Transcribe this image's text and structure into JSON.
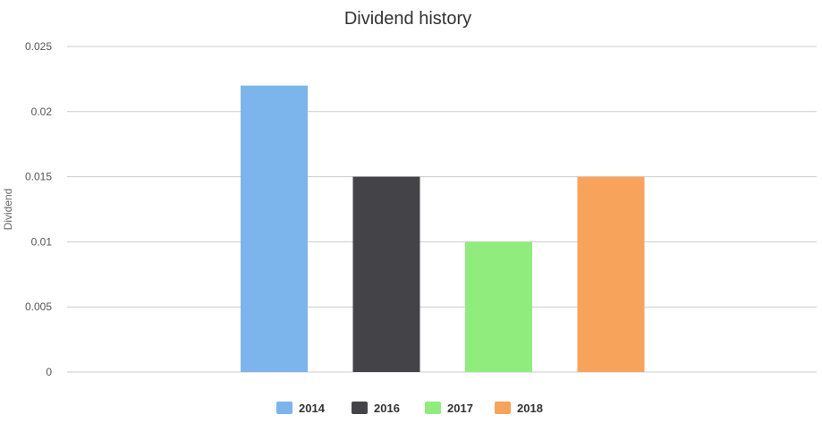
{
  "chart_data": {
    "type": "bar",
    "title": "Dividend history",
    "xlabel": "",
    "ylabel": "Dividend",
    "ylim": [
      0,
      0.025
    ],
    "yticks": [
      0,
      0.005,
      0.01,
      0.015,
      0.02,
      0.025
    ],
    "ytick_labels": [
      "0",
      "0.005",
      "0.01",
      "0.015",
      "0.02",
      "0.025"
    ],
    "grid": true,
    "legend_position": "bottom-center",
    "series": [
      {
        "name": "2014",
        "value": 0.022,
        "color": "#7cb5ec"
      },
      {
        "name": "2016",
        "value": 0.015,
        "color": "#434348"
      },
      {
        "name": "2017",
        "value": 0.01,
        "color": "#90ed7d"
      },
      {
        "name": "2018",
        "value": 0.015,
        "color": "#f7a35c"
      }
    ]
  }
}
